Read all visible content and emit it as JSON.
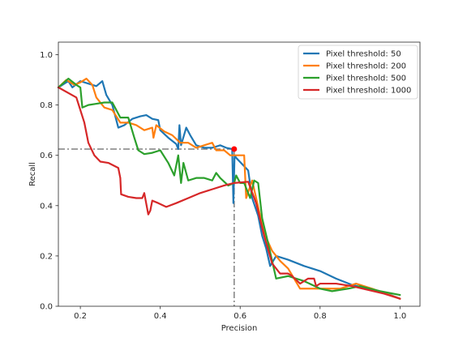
{
  "chart_data": {
    "type": "line",
    "title": "",
    "xlabel": "Precision",
    "ylabel": "Recall",
    "xlim": [
      0.145,
      1.05
    ],
    "ylim": [
      0.0,
      1.05
    ],
    "xticks": [
      0.2,
      0.4,
      0.6,
      0.8,
      1.0
    ],
    "xtick_labels": [
      "0.2",
      "0.4",
      "0.6",
      "0.8",
      "1.0"
    ],
    "yticks": [
      0.0,
      0.2,
      0.4,
      0.6,
      0.8,
      1.0
    ],
    "ytick_labels": [
      "0.0",
      "0.2",
      "0.4",
      "0.6",
      "0.8",
      "1.0"
    ],
    "grid": false,
    "legend_position": "top-right",
    "series": [
      {
        "name": "Pixel threshold: 50",
        "color": "#1f77b4",
        "points": [
          [
            0.145,
            0.87
          ],
          [
            0.17,
            0.895
          ],
          [
            0.18,
            0.87
          ],
          [
            0.2,
            0.895
          ],
          [
            0.22,
            0.885
          ],
          [
            0.24,
            0.875
          ],
          [
            0.255,
            0.895
          ],
          [
            0.265,
            0.84
          ],
          [
            0.28,
            0.8
          ],
          [
            0.295,
            0.71
          ],
          [
            0.31,
            0.72
          ],
          [
            0.33,
            0.745
          ],
          [
            0.35,
            0.755
          ],
          [
            0.365,
            0.76
          ],
          [
            0.38,
            0.745
          ],
          [
            0.395,
            0.74
          ],
          [
            0.4,
            0.7
          ],
          [
            0.42,
            0.67
          ],
          [
            0.44,
            0.645
          ],
          [
            0.445,
            0.625
          ],
          [
            0.448,
            0.72
          ],
          [
            0.452,
            0.64
          ],
          [
            0.465,
            0.71
          ],
          [
            0.475,
            0.68
          ],
          [
            0.49,
            0.64
          ],
          [
            0.51,
            0.63
          ],
          [
            0.53,
            0.63
          ],
          [
            0.55,
            0.64
          ],
          [
            0.565,
            0.63
          ],
          [
            0.58,
            0.625
          ],
          [
            0.583,
            0.41
          ],
          [
            0.586,
            0.6
          ],
          [
            0.59,
            0.59
          ],
          [
            0.62,
            0.54
          ],
          [
            0.63,
            0.43
          ],
          [
            0.645,
            0.36
          ],
          [
            0.655,
            0.28
          ],
          [
            0.665,
            0.23
          ],
          [
            0.675,
            0.16
          ],
          [
            0.69,
            0.2
          ],
          [
            0.72,
            0.185
          ],
          [
            0.76,
            0.16
          ],
          [
            0.8,
            0.14
          ],
          [
            0.84,
            0.11
          ],
          [
            0.88,
            0.085
          ],
          [
            0.92,
            0.07
          ],
          [
            0.96,
            0.055
          ],
          [
            1.0,
            0.03
          ]
        ]
      },
      {
        "name": "Pixel threshold: 200",
        "color": "#ff7f0e",
        "points": [
          [
            0.145,
            0.87
          ],
          [
            0.165,
            0.9
          ],
          [
            0.185,
            0.88
          ],
          [
            0.2,
            0.89
          ],
          [
            0.215,
            0.905
          ],
          [
            0.23,
            0.88
          ],
          [
            0.24,
            0.83
          ],
          [
            0.26,
            0.79
          ],
          [
            0.28,
            0.78
          ],
          [
            0.3,
            0.73
          ],
          [
            0.32,
            0.73
          ],
          [
            0.34,
            0.72
          ],
          [
            0.36,
            0.7
          ],
          [
            0.38,
            0.71
          ],
          [
            0.383,
            0.67
          ],
          [
            0.39,
            0.72
          ],
          [
            0.41,
            0.695
          ],
          [
            0.43,
            0.68
          ],
          [
            0.45,
            0.65
          ],
          [
            0.47,
            0.65
          ],
          [
            0.49,
            0.63
          ],
          [
            0.51,
            0.64
          ],
          [
            0.53,
            0.65
          ],
          [
            0.54,
            0.62
          ],
          [
            0.56,
            0.62
          ],
          [
            0.575,
            0.6
          ],
          [
            0.6,
            0.6
          ],
          [
            0.61,
            0.6
          ],
          [
            0.615,
            0.43
          ],
          [
            0.63,
            0.5
          ],
          [
            0.65,
            0.36
          ],
          [
            0.66,
            0.29
          ],
          [
            0.68,
            0.22
          ],
          [
            0.7,
            0.18
          ],
          [
            0.72,
            0.15
          ],
          [
            0.75,
            0.07
          ],
          [
            0.8,
            0.07
          ],
          [
            0.85,
            0.07
          ],
          [
            0.89,
            0.09
          ],
          [
            0.93,
            0.07
          ],
          [
            1.0,
            0.03
          ]
        ]
      },
      {
        "name": "Pixel threshold: 500",
        "color": "#2ca02c",
        "points": [
          [
            0.145,
            0.87
          ],
          [
            0.17,
            0.905
          ],
          [
            0.19,
            0.88
          ],
          [
            0.2,
            0.87
          ],
          [
            0.205,
            0.79
          ],
          [
            0.22,
            0.8
          ],
          [
            0.24,
            0.805
          ],
          [
            0.26,
            0.81
          ],
          [
            0.28,
            0.81
          ],
          [
            0.3,
            0.75
          ],
          [
            0.32,
            0.75
          ],
          [
            0.335,
            0.67
          ],
          [
            0.345,
            0.62
          ],
          [
            0.36,
            0.605
          ],
          [
            0.38,
            0.61
          ],
          [
            0.4,
            0.62
          ],
          [
            0.42,
            0.57
          ],
          [
            0.435,
            0.52
          ],
          [
            0.445,
            0.6
          ],
          [
            0.452,
            0.49
          ],
          [
            0.458,
            0.57
          ],
          [
            0.47,
            0.5
          ],
          [
            0.49,
            0.51
          ],
          [
            0.51,
            0.51
          ],
          [
            0.53,
            0.5
          ],
          [
            0.54,
            0.53
          ],
          [
            0.55,
            0.51
          ],
          [
            0.57,
            0.48
          ],
          [
            0.585,
            0.49
          ],
          [
            0.59,
            0.52
          ],
          [
            0.6,
            0.49
          ],
          [
            0.61,
            0.49
          ],
          [
            0.625,
            0.43
          ],
          [
            0.635,
            0.5
          ],
          [
            0.645,
            0.49
          ],
          [
            0.655,
            0.35
          ],
          [
            0.67,
            0.25
          ],
          [
            0.69,
            0.11
          ],
          [
            0.72,
            0.12
          ],
          [
            0.76,
            0.1
          ],
          [
            0.8,
            0.07
          ],
          [
            0.83,
            0.06
          ],
          [
            0.87,
            0.07
          ],
          [
            0.9,
            0.08
          ],
          [
            0.95,
            0.06
          ],
          [
            1.0,
            0.045
          ]
        ]
      },
      {
        "name": "Pixel threshold: 1000",
        "color": "#d62728",
        "points": [
          [
            0.145,
            0.87
          ],
          [
            0.19,
            0.83
          ],
          [
            0.21,
            0.73
          ],
          [
            0.22,
            0.65
          ],
          [
            0.235,
            0.6
          ],
          [
            0.25,
            0.575
          ],
          [
            0.27,
            0.57
          ],
          [
            0.295,
            0.55
          ],
          [
            0.3,
            0.51
          ],
          [
            0.302,
            0.445
          ],
          [
            0.32,
            0.435
          ],
          [
            0.34,
            0.43
          ],
          [
            0.355,
            0.43
          ],
          [
            0.36,
            0.45
          ],
          [
            0.37,
            0.365
          ],
          [
            0.375,
            0.38
          ],
          [
            0.38,
            0.42
          ],
          [
            0.395,
            0.41
          ],
          [
            0.415,
            0.395
          ],
          [
            0.44,
            0.41
          ],
          [
            0.47,
            0.43
          ],
          [
            0.5,
            0.45
          ],
          [
            0.53,
            0.465
          ],
          [
            0.56,
            0.48
          ],
          [
            0.585,
            0.49
          ],
          [
            0.62,
            0.495
          ],
          [
            0.64,
            0.41
          ],
          [
            0.66,
            0.28
          ],
          [
            0.68,
            0.17
          ],
          [
            0.7,
            0.13
          ],
          [
            0.72,
            0.13
          ],
          [
            0.73,
            0.12
          ],
          [
            0.75,
            0.09
          ],
          [
            0.77,
            0.11
          ],
          [
            0.785,
            0.11
          ],
          [
            0.79,
            0.08
          ],
          [
            0.8,
            0.09
          ],
          [
            0.84,
            0.09
          ],
          [
            0.88,
            0.08
          ],
          [
            0.92,
            0.065
          ],
          [
            0.96,
            0.05
          ],
          [
            1.0,
            0.03
          ]
        ]
      }
    ],
    "operating_point": {
      "x": 0.585,
      "y": 0.625,
      "color": "#ff0000"
    },
    "reference_lines_color": "#808080"
  }
}
